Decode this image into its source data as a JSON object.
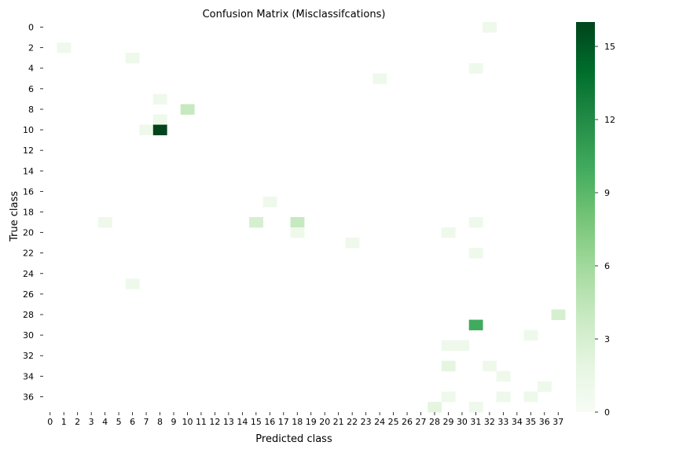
{
  "chart_data": {
    "type": "heatmap",
    "title": "Confusion Matrix (Misclassifcations)",
    "xlabel": "Predicted class",
    "ylabel": "True class",
    "x_categories": [
      0,
      1,
      2,
      3,
      4,
      5,
      6,
      7,
      8,
      9,
      10,
      11,
      12,
      13,
      14,
      15,
      16,
      17,
      18,
      19,
      20,
      21,
      22,
      23,
      24,
      25,
      26,
      27,
      28,
      29,
      30,
      31,
      32,
      33,
      34,
      35,
      36,
      37
    ],
    "y_tick_labels": [
      0,
      2,
      4,
      6,
      8,
      10,
      12,
      14,
      16,
      18,
      20,
      22,
      24,
      26,
      28,
      30,
      32,
      34,
      36
    ],
    "n_classes": 38,
    "colormap": "Greens",
    "color_range": [
      0,
      16
    ],
    "colorbar_ticks": [
      0,
      3,
      6,
      9,
      12,
      15
    ],
    "cells": [
      {
        "true": 0,
        "pred": 32,
        "value": 1
      },
      {
        "true": 2,
        "pred": 1,
        "value": 1
      },
      {
        "true": 3,
        "pred": 6,
        "value": 1
      },
      {
        "true": 4,
        "pred": 31,
        "value": 1
      },
      {
        "true": 5,
        "pred": 24,
        "value": 1
      },
      {
        "true": 7,
        "pred": 8,
        "value": 1
      },
      {
        "true": 8,
        "pred": 10,
        "value": 4
      },
      {
        "true": 9,
        "pred": 8,
        "value": 1
      },
      {
        "true": 10,
        "pred": 7,
        "value": 1
      },
      {
        "true": 10,
        "pred": 8,
        "value": 16
      },
      {
        "true": 17,
        "pred": 16,
        "value": 1
      },
      {
        "true": 19,
        "pred": 4,
        "value": 1
      },
      {
        "true": 19,
        "pred": 15,
        "value": 3
      },
      {
        "true": 19,
        "pred": 18,
        "value": 4
      },
      {
        "true": 19,
        "pred": 31,
        "value": 1
      },
      {
        "true": 20,
        "pred": 18,
        "value": 1
      },
      {
        "true": 20,
        "pred": 29,
        "value": 1
      },
      {
        "true": 21,
        "pred": 22,
        "value": 1
      },
      {
        "true": 22,
        "pred": 31,
        "value": 1
      },
      {
        "true": 25,
        "pred": 6,
        "value": 1
      },
      {
        "true": 28,
        "pred": 37,
        "value": 3
      },
      {
        "true": 29,
        "pred": 31,
        "value": 10
      },
      {
        "true": 30,
        "pred": 35,
        "value": 1
      },
      {
        "true": 31,
        "pred": 29,
        "value": 1
      },
      {
        "true": 31,
        "pred": 30,
        "value": 1
      },
      {
        "true": 33,
        "pred": 29,
        "value": 2
      },
      {
        "true": 33,
        "pred": 32,
        "value": 1
      },
      {
        "true": 34,
        "pred": 33,
        "value": 1
      },
      {
        "true": 35,
        "pred": 36,
        "value": 1
      },
      {
        "true": 36,
        "pred": 29,
        "value": 1
      },
      {
        "true": 36,
        "pred": 33,
        "value": 1
      },
      {
        "true": 36,
        "pred": 35,
        "value": 1
      },
      {
        "true": 37,
        "pred": 28,
        "value": 2
      },
      {
        "true": 37,
        "pred": 31,
        "value": 1
      }
    ]
  }
}
